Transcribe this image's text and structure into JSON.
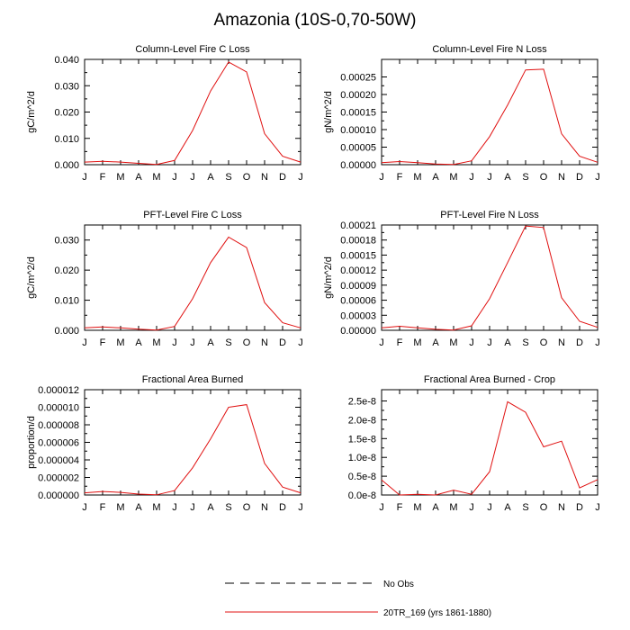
{
  "title": "Amazonia (10S-0,70-50W)",
  "colors": {
    "model_line": "#e01010",
    "obs_line": "#000000",
    "axis": "#000000"
  },
  "legend": {
    "entries": [
      {
        "label": "No Obs",
        "style": "dashed",
        "color": "#000000"
      },
      {
        "label": "20TR_169 (yrs 1861-1880)",
        "style": "solid",
        "color": "#e01010"
      }
    ]
  },
  "chart_data": [
    {
      "type": "line",
      "title": "Column-Level Fire C Loss",
      "ylabel": "gC/m^2/d",
      "xlabel": "",
      "categories": [
        "J",
        "F",
        "M",
        "A",
        "M",
        "J",
        "J",
        "A",
        "S",
        "O",
        "N",
        "D",
        "J"
      ],
      "ylim": [
        0,
        0.04
      ],
      "yticks": [
        "0.000",
        "0.010",
        "0.020",
        "0.030",
        "0.040"
      ],
      "series": [
        {
          "name": "20TR_169 (yrs 1861-1880)",
          "values": [
            0.001,
            0.0013,
            0.001,
            0.0005,
            0.0001,
            0.0016,
            0.013,
            0.028,
            0.039,
            0.0352,
            0.0118,
            0.0032,
            0.001
          ]
        }
      ]
    },
    {
      "type": "line",
      "title": "Column-Level Fire N Loss",
      "ylabel": "gN/m^2/d",
      "xlabel": "",
      "categories": [
        "J",
        "F",
        "M",
        "A",
        "M",
        "J",
        "J",
        "A",
        "S",
        "O",
        "N",
        "D",
        "J"
      ],
      "ylim": [
        0,
        0.0003
      ],
      "yticks": [
        "0.00000",
        "0.00005",
        "0.00010",
        "0.00015",
        "0.00020",
        "0.00025"
      ],
      "series": [
        {
          "name": "20TR_169 (yrs 1861-1880)",
          "values": [
            6e-06,
            9e-06,
            6e-06,
            2e-06,
            5e-07,
            1.1e-05,
            8e-05,
            0.00017,
            0.00027,
            0.000272,
            8.8e-05,
            2.4e-05,
            7e-06
          ]
        }
      ]
    },
    {
      "type": "line",
      "title": "PFT-Level Fire C Loss",
      "ylabel": "gC/m^2/d",
      "xlabel": "",
      "categories": [
        "J",
        "F",
        "M",
        "A",
        "M",
        "J",
        "J",
        "A",
        "S",
        "O",
        "N",
        "D",
        "J"
      ],
      "ylim": [
        0,
        0.035
      ],
      "yticks": [
        "0.000",
        "0.010",
        "0.020",
        "0.030"
      ],
      "series": [
        {
          "name": "20TR_169 (yrs 1861-1880)",
          "values": [
            0.0008,
            0.0011,
            0.0008,
            0.0004,
            0.0001,
            0.0013,
            0.0105,
            0.0225,
            0.031,
            0.0275,
            0.0092,
            0.0025,
            0.0008
          ]
        }
      ]
    },
    {
      "type": "line",
      "title": "PFT-Level Fire N Loss",
      "ylabel": "gN/m^2/d",
      "xlabel": "",
      "categories": [
        "J",
        "F",
        "M",
        "A",
        "M",
        "J",
        "J",
        "A",
        "S",
        "O",
        "N",
        "D",
        "J"
      ],
      "ylim": [
        0,
        0.00021
      ],
      "yticks": [
        "0.00000",
        "0.00003",
        "0.00006",
        "0.00009",
        "0.00012",
        "0.00015",
        "0.00018",
        "0.00021"
      ],
      "series": [
        {
          "name": "20TR_169 (yrs 1861-1880)",
          "values": [
            5e-06,
            8e-06,
            5e-06,
            2e-06,
            5e-07,
            9e-06,
            6.3e-05,
            0.000135,
            0.000208,
            0.000205,
            6.5e-05,
            1.8e-05,
            6e-06
          ]
        }
      ]
    },
    {
      "type": "line",
      "title": "Fractional Area Burned",
      "ylabel": "proportion/d",
      "xlabel": "",
      "categories": [
        "J",
        "F",
        "M",
        "A",
        "M",
        "J",
        "J",
        "A",
        "S",
        "O",
        "N",
        "D",
        "J"
      ],
      "ylim": [
        0,
        1.2e-05
      ],
      "yticks": [
        "0.000000",
        "0.000002",
        "0.000004",
        "0.000006",
        "0.000008",
        "0.000010",
        "0.000012"
      ],
      "series": [
        {
          "name": "20TR_169 (yrs 1861-1880)",
          "values": [
            2.5e-07,
            4e-07,
            3e-07,
            1e-07,
            2e-08,
            5e-07,
            3.1e-06,
            6.4e-06,
            1e-05,
            1.03e-05,
            3.6e-06,
            9e-07,
            2.5e-07
          ]
        }
      ]
    },
    {
      "type": "line",
      "title": "Fractional Area Burned - Crop",
      "ylabel": "",
      "xlabel": "",
      "categories": [
        "J",
        "F",
        "M",
        "A",
        "M",
        "J",
        "J",
        "A",
        "S",
        "O",
        "N",
        "D",
        "J"
      ],
      "ylim": [
        0,
        2.8e-08
      ],
      "yticks": [
        "0.0e-8",
        "0.5e-8",
        "1.0e-8",
        "1.5e-8",
        "2.0e-8",
        "2.5e-8"
      ],
      "series": [
        {
          "name": "20TR_169 (yrs 1861-1880)",
          "values": [
            4e-09,
            0.0,
            2e-10,
            0.0,
            1.3e-09,
            2e-10,
            6.2e-09,
            2.48e-08,
            2.2e-08,
            1.28e-08,
            1.43e-08,
            1.9e-09,
            4.1e-09
          ]
        }
      ]
    }
  ]
}
